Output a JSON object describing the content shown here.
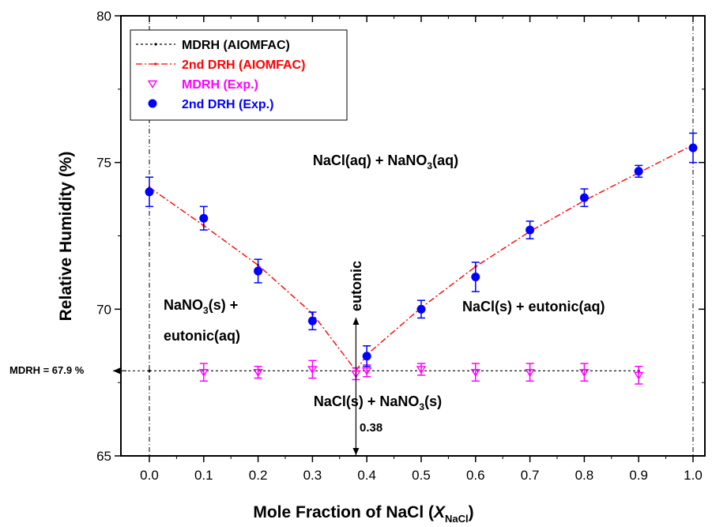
{
  "chart_data": {
    "type": "scatter",
    "xlabel_main": "Mole Fraction of NaCl (",
    "xlabel_var": "X",
    "xlabel_sub": "NaCl",
    "xlabel_end": ")",
    "ylabel": "Relative Humidity (%)",
    "xlim": [
      -0.13,
      1.06
    ],
    "ylim": [
      65,
      80
    ],
    "x_ticks": [
      "0.0",
      "0.1",
      "0.2",
      "0.3",
      "0.4",
      "0.5",
      "0.6",
      "0.7",
      "0.8",
      "0.9",
      "1.0"
    ],
    "y_ticks": [
      "65",
      "70",
      "75",
      "80"
    ],
    "legend_position": "top-left",
    "series": [
      {
        "name": "MDRH (AIOMFAC)",
        "kind": "line",
        "color": "#000000",
        "x": [
          0.0,
          0.38,
          0.9
        ],
        "y": [
          67.9,
          67.9,
          67.9
        ]
      },
      {
        "name": "2nd DRH (AIOMFAC)",
        "kind": "line",
        "color": "#ff0000",
        "x": [
          0.0,
          0.1,
          0.2,
          0.3,
          0.38,
          0.4,
          0.5,
          0.6,
          0.7,
          0.8,
          0.9,
          1.0
        ],
        "y": [
          74.15,
          72.85,
          71.5,
          69.85,
          67.9,
          68.45,
          70.05,
          71.45,
          72.65,
          73.7,
          74.65,
          75.6
        ]
      },
      {
        "name": "MDRH (Exp.)",
        "kind": "scatter",
        "marker": "triangle-down",
        "color": "#ff00ff",
        "x": [
          0.1,
          0.2,
          0.3,
          0.38,
          0.4,
          0.5,
          0.6,
          0.7,
          0.8,
          0.9
        ],
        "y": [
          67.85,
          67.85,
          67.95,
          67.8,
          67.9,
          67.95,
          67.85,
          67.85,
          67.85,
          67.75
        ],
        "yerr": [
          0.3,
          0.2,
          0.3,
          0.2,
          0.2,
          0.2,
          0.3,
          0.3,
          0.3,
          0.3
        ]
      },
      {
        "name": "2nd DRH (Exp.)",
        "kind": "scatter",
        "marker": "circle",
        "color": "#0000ff",
        "x": [
          0.0,
          0.1,
          0.2,
          0.3,
          0.4,
          0.5,
          0.6,
          0.7,
          0.8,
          0.9,
          1.0
        ],
        "y": [
          74.0,
          73.1,
          71.3,
          69.6,
          68.4,
          70.0,
          71.1,
          72.7,
          73.8,
          74.7,
          75.5
        ],
        "yerr": [
          0.5,
          0.4,
          0.4,
          0.3,
          0.35,
          0.3,
          0.5,
          0.3,
          0.3,
          0.2,
          0.5
        ]
      }
    ],
    "annotations": {
      "top_region": {
        "pre": "NaCl(aq) + NaNO",
        "sub": "3",
        "post": "(aq)"
      },
      "left_region_line1": {
        "pre": "NaNO",
        "sub": "3",
        "post": "(s) +"
      },
      "left_region_line2": "eutonic(aq)",
      "right_region": "NaCl(s) + eutonic(aq)",
      "bottom_region": {
        "pre": "NaCl(s) + NaNO",
        "sub": "3",
        "post": "(s)"
      },
      "eutonic_label": "eutonic",
      "eutonic_x_label": "0.38",
      "mdrh_label": "MDRH = 67.9 %"
    }
  }
}
